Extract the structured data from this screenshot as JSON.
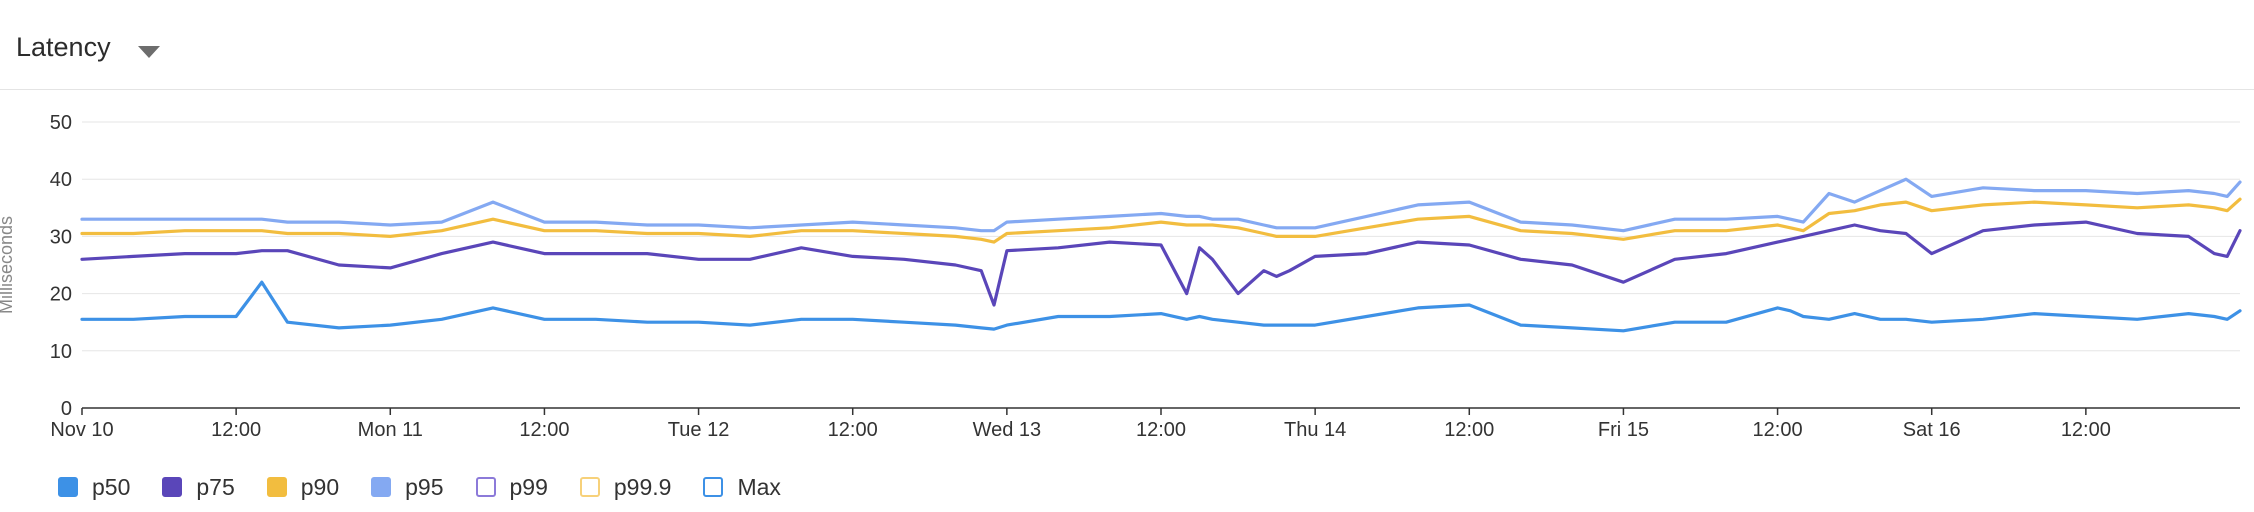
{
  "header": {
    "title": "Latency"
  },
  "chart_data": {
    "type": "line",
    "ylabel": "Milliseconds",
    "ylim": [
      0,
      50
    ],
    "yticks": [
      0,
      10,
      20,
      30,
      40,
      50
    ],
    "xlim": [
      0,
      168
    ],
    "xticks": [
      {
        "x": 0,
        "label": "Nov 10"
      },
      {
        "x": 12,
        "label": "12:00"
      },
      {
        "x": 24,
        "label": "Mon 11"
      },
      {
        "x": 36,
        "label": "12:00"
      },
      {
        "x": 48,
        "label": "Tue 12"
      },
      {
        "x": 60,
        "label": "12:00"
      },
      {
        "x": 72,
        "label": "Wed 13"
      },
      {
        "x": 84,
        "label": "12:00"
      },
      {
        "x": 96,
        "label": "Thu 14"
      },
      {
        "x": 108,
        "label": "12:00"
      },
      {
        "x": 120,
        "label": "Fri 15"
      },
      {
        "x": 132,
        "label": "12:00"
      },
      {
        "x": 144,
        "label": "Sat 16"
      },
      {
        "x": 156,
        "label": "12:00"
      }
    ],
    "x_hours": [
      0,
      4,
      8,
      12,
      14,
      16,
      20,
      24,
      28,
      32,
      36,
      40,
      44,
      48,
      52,
      56,
      60,
      64,
      68,
      70,
      71,
      72,
      76,
      80,
      84,
      86,
      87,
      88,
      90,
      92,
      93,
      94,
      96,
      100,
      104,
      108,
      112,
      116,
      120,
      124,
      128,
      132,
      133,
      134,
      136,
      138,
      140,
      142,
      144,
      148,
      152,
      156,
      160,
      164,
      166,
      167,
      168
    ],
    "series": [
      {
        "name": "p50",
        "color": "#3d91e6",
        "visible": true,
        "values": [
          15.5,
          15.5,
          16,
          16,
          22,
          15,
          14,
          14.5,
          15.5,
          17.5,
          15.5,
          15.5,
          15,
          15,
          14.5,
          15.5,
          15.5,
          15,
          14.5,
          14,
          13.8,
          14.5,
          16,
          16,
          16.5,
          15.5,
          16,
          15.5,
          15,
          14.5,
          14.5,
          14.5,
          14.5,
          16,
          17.5,
          18,
          14.5,
          14,
          13.5,
          15,
          15,
          17.5,
          17,
          16,
          15.5,
          16.5,
          15.5,
          15.5,
          15,
          15.5,
          16.5,
          16,
          15.5,
          16.5,
          16,
          15.5,
          17
        ]
      },
      {
        "name": "p75",
        "color": "#5a46b9",
        "visible": true,
        "values": [
          26,
          26.5,
          27,
          27,
          27.5,
          27.5,
          25,
          24.5,
          27,
          29,
          27,
          27,
          27,
          26,
          26,
          28,
          26.5,
          26,
          25,
          24,
          18,
          27.5,
          28,
          29,
          28.5,
          20,
          28,
          26,
          20,
          24,
          23,
          24,
          26.5,
          27,
          29,
          28.5,
          26,
          25,
          22,
          26,
          27,
          29,
          29.5,
          30,
          31,
          32,
          31,
          30.5,
          27,
          31,
          32,
          32.5,
          30.5,
          30,
          27,
          26.5,
          31
        ]
      },
      {
        "name": "p90",
        "color": "#f2bd3f",
        "visible": true,
        "values": [
          30.5,
          30.5,
          31,
          31,
          31,
          30.5,
          30.5,
          30,
          31,
          33,
          31,
          31,
          30.5,
          30.5,
          30,
          31,
          31,
          30.5,
          30,
          29.5,
          29,
          30.5,
          31,
          31.5,
          32.5,
          32,
          32,
          32,
          31.5,
          30.5,
          30,
          30,
          30,
          31.5,
          33,
          33.5,
          31,
          30.5,
          29.5,
          31,
          31,
          32,
          31.5,
          31,
          34,
          34.5,
          35.5,
          36,
          34.5,
          35.5,
          36,
          35.5,
          35,
          35.5,
          35,
          34.5,
          36.5
        ]
      },
      {
        "name": "p95",
        "color": "#84a9f2",
        "visible": true,
        "values": [
          33,
          33,
          33,
          33,
          33,
          32.5,
          32.5,
          32,
          32.5,
          36,
          32.5,
          32.5,
          32,
          32,
          31.5,
          32,
          32.5,
          32,
          31.5,
          31,
          31,
          32.5,
          33,
          33.5,
          34,
          33.5,
          33.5,
          33,
          33,
          32,
          31.5,
          31.5,
          31.5,
          33.5,
          35.5,
          36,
          32.5,
          32,
          31,
          33,
          33,
          33.5,
          33,
          32.5,
          37.5,
          36,
          38,
          40,
          37,
          38.5,
          38,
          38,
          37.5,
          38,
          37.5,
          37,
          39.5
        ]
      },
      {
        "name": "p99",
        "color": "#8c7ad9",
        "visible": false,
        "values": []
      },
      {
        "name": "p99.9",
        "color": "#f7d17a",
        "visible": false,
        "values": []
      },
      {
        "name": "Max",
        "color": "#3d91e6",
        "visible": false,
        "values": []
      }
    ]
  },
  "legend": [
    "p50",
    "p75",
    "p90",
    "p95",
    "p99",
    "p99.9",
    "Max"
  ]
}
